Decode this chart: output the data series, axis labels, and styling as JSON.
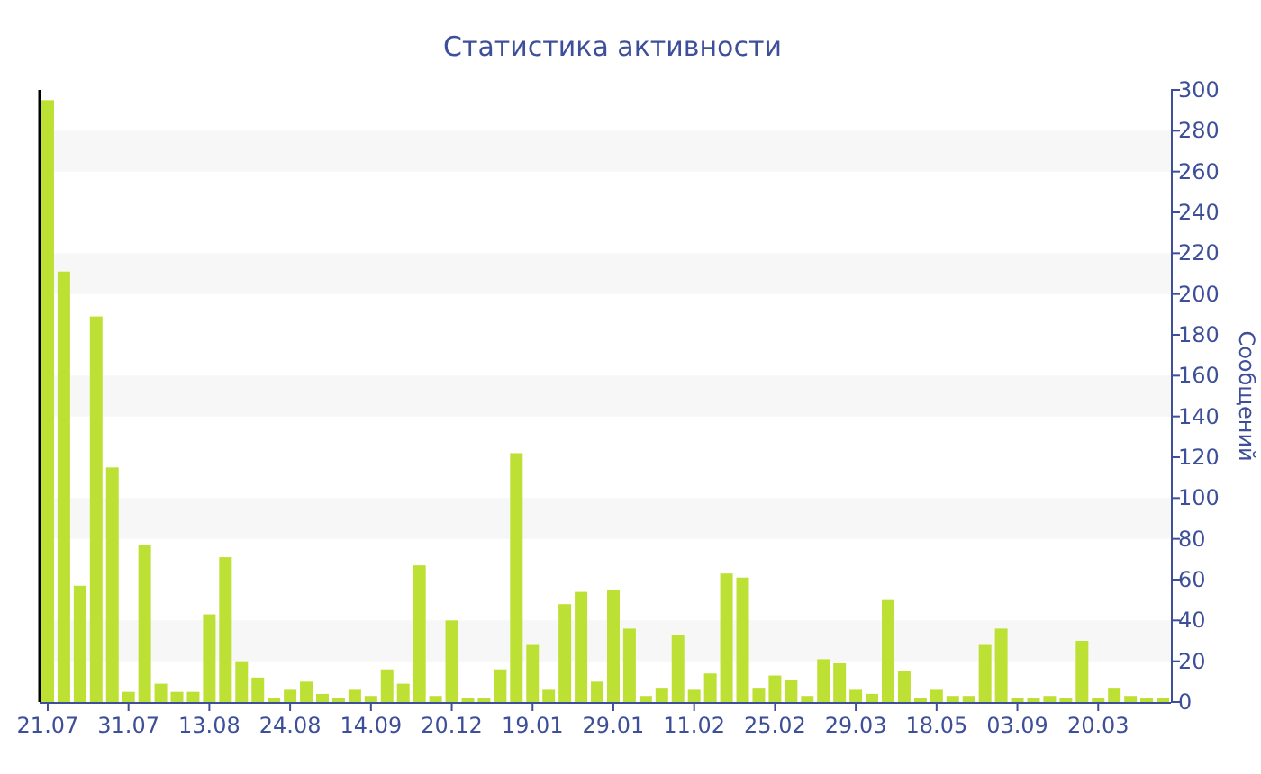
{
  "chart_data": {
    "type": "bar",
    "title": "Статистика активности",
    "ylabel": "Сообщений",
    "categories": [
      "21.07",
      null,
      null,
      null,
      null,
      "31.07",
      null,
      null,
      null,
      null,
      "13.08",
      null,
      null,
      null,
      null,
      "24.08",
      null,
      null,
      null,
      null,
      "14.09",
      null,
      null,
      null,
      null,
      "20.12",
      null,
      null,
      null,
      null,
      "19.01",
      null,
      null,
      null,
      null,
      "29.01",
      null,
      null,
      null,
      null,
      "11.02",
      null,
      null,
      null,
      null,
      "25.02",
      null,
      null,
      null,
      null,
      "29.03",
      null,
      null,
      null,
      null,
      "18.05",
      null,
      null,
      null,
      null,
      "03.09",
      null,
      null,
      null,
      null,
      "20.03",
      null,
      null,
      null,
      null
    ],
    "values": [
      295,
      211,
      57,
      189,
      115,
      5,
      77,
      9,
      5,
      5,
      43,
      71,
      20,
      12,
      2,
      6,
      10,
      4,
      2,
      6,
      3,
      16,
      9,
      67,
      3,
      40,
      2,
      2,
      16,
      122,
      28,
      6,
      48,
      54,
      10,
      55,
      36,
      3,
      7,
      33,
      6,
      14,
      63,
      61,
      7,
      13,
      11,
      3,
      21,
      19,
      6,
      4,
      50,
      15,
      2,
      6,
      3,
      3,
      28,
      36,
      2,
      2,
      3,
      2,
      30,
      2,
      7,
      3,
      2,
      2
    ],
    "color": "#bde035",
    "ylim": [
      0,
      300
    ],
    "yticks": [
      0,
      20,
      40,
      60,
      80,
      100,
      120,
      140,
      160,
      180,
      200,
      220,
      240,
      260,
      280,
      300
    ],
    "bands": [
      {
        "axis": "y",
        "from": 20,
        "to": 40,
        "color": "#f7f7f7"
      },
      {
        "axis": "y",
        "from": 80,
        "to": 100,
        "color": "#f7f7f7"
      },
      {
        "axis": "y",
        "from": 140,
        "to": 160,
        "color": "#f7f7f7"
      },
      {
        "axis": "y",
        "from": 200,
        "to": 220,
        "color": "#f7f7f7"
      },
      {
        "axis": "y",
        "from": 260,
        "to": 280,
        "color": "#f7f7f7"
      }
    ]
  }
}
